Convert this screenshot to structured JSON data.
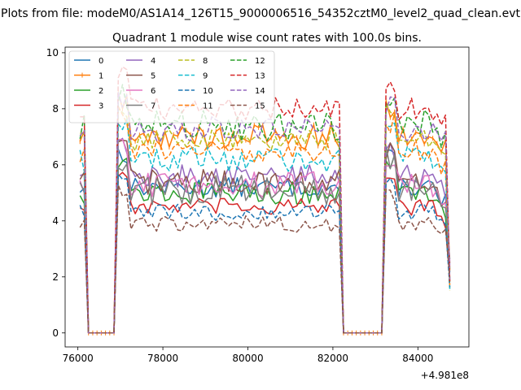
{
  "figure": {
    "suptitle": "Plots from file: modeM0/AS1A14_126T15_9000006516_54352cztM0_level2_quad_clean.evt",
    "offset_label": "+4.981e8"
  },
  "chart_data": {
    "type": "line",
    "title": "Quadrant 1 module wise count rates with 100.0s bins.",
    "xlabel": "",
    "ylabel": "",
    "x_offset": 498100000,
    "xlim": [
      75700,
      85200
    ],
    "ylim": [
      -0.5,
      10.2
    ],
    "xticks": [
      76000,
      78000,
      80000,
      82000,
      84000
    ],
    "xtick_labels": [
      "76000",
      "78000",
      "80000",
      "82000",
      "84000"
    ],
    "yticks": [
      0,
      2,
      4,
      6,
      8,
      10
    ],
    "ytick_labels": [
      "0",
      "2",
      "4",
      "6",
      "8",
      "10"
    ],
    "grid": false,
    "legend_position": "top-left",
    "legend_columns": 4,
    "segments": [
      {
        "start": 76050,
        "end": 76150,
        "state": "on"
      },
      {
        "start": 76250,
        "end": 76850,
        "state": "off"
      },
      {
        "start": 76950,
        "end": 82150,
        "state": "on"
      },
      {
        "start": 82250,
        "end": 83150,
        "state": "off"
      },
      {
        "start": 83250,
        "end": 84650,
        "state": "on"
      },
      {
        "start": 84750,
        "end": 84750,
        "state": "end"
      }
    ],
    "bin_width_s": 100,
    "series": [
      {
        "name": "0",
        "color": "#1f77b4",
        "dash": "solid",
        "marker": false,
        "level": 5.2,
        "noise": 0.35
      },
      {
        "name": "1",
        "color": "#ff7f0e",
        "dash": "solid",
        "marker": true,
        "level": 7.0,
        "noise": 0.45
      },
      {
        "name": "2",
        "color": "#2ca02c",
        "dash": "solid",
        "marker": false,
        "level": 5.0,
        "noise": 0.4
      },
      {
        "name": "3",
        "color": "#d62728",
        "dash": "solid",
        "marker": false,
        "level": 4.5,
        "noise": 0.3
      },
      {
        "name": "4",
        "color": "#9467bd",
        "dash": "solid",
        "marker": false,
        "level": 5.6,
        "noise": 0.4
      },
      {
        "name": "5",
        "color": "#8c564b",
        "dash": "solid",
        "marker": false,
        "level": 5.4,
        "noise": 0.45
      },
      {
        "name": "6",
        "color": "#e377c2",
        "dash": "solid",
        "marker": false,
        "level": 5.3,
        "noise": 0.45
      },
      {
        "name": "7",
        "color": "#7f7f7f",
        "dash": "solid",
        "marker": false,
        "level": 5.1,
        "noise": 0.6
      },
      {
        "name": "8",
        "color": "#bcbd22",
        "dash": "dashed",
        "marker": false,
        "level": 6.9,
        "noise": 0.4
      },
      {
        "name": "9",
        "color": "#17becf",
        "dash": "dashed",
        "marker": false,
        "level": 6.2,
        "noise": 0.45
      },
      {
        "name": "10",
        "color": "#1f77b4",
        "dash": "dashed",
        "marker": false,
        "level": 4.3,
        "noise": 0.3
      },
      {
        "name": "11",
        "color": "#ff7f0e",
        "dash": "dashed",
        "marker": false,
        "level": 6.5,
        "noise": 0.4
      },
      {
        "name": "12",
        "color": "#2ca02c",
        "dash": "dashed",
        "marker": false,
        "level": 7.4,
        "noise": 0.55
      },
      {
        "name": "13",
        "color": "#d62728",
        "dash": "dashed",
        "marker": false,
        "level": 8.0,
        "noise": 0.4
      },
      {
        "name": "14",
        "color": "#9467bd",
        "dash": "dashed",
        "marker": false,
        "level": 7.3,
        "noise": 0.45
      },
      {
        "name": "15",
        "color": "#8c564b",
        "dash": "dashed",
        "marker": false,
        "level": 3.9,
        "noise": 0.3
      }
    ]
  }
}
